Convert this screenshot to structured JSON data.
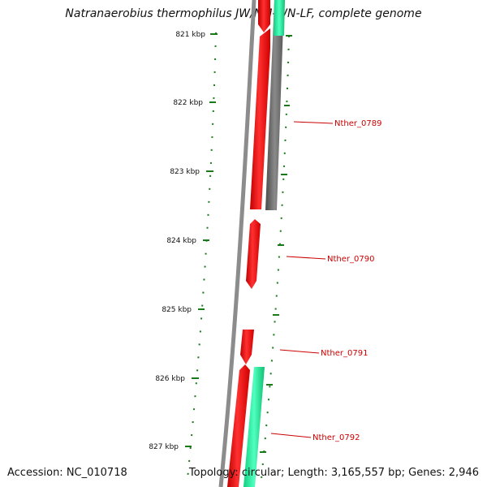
{
  "title": "Natranaerobius thermophilus JW/NM-WN-LF, complete genome",
  "footer": {
    "accession": "Accession: NC_010718",
    "summary": "Topology: circular; Length: 3,165,557 bp; Genes: 2,946"
  },
  "ticks": [
    "821 kbp",
    "822 kbp",
    "823 kbp",
    "824 kbp",
    "825 kbp",
    "826 kbp",
    "827 kbp"
  ],
  "genes": [
    {
      "name": "Nther_0789",
      "strand": "reverse",
      "color": "#ff0000"
    },
    {
      "name": "Nther_0790",
      "strand": "reverse",
      "color": "#ff0000"
    },
    {
      "name": "Nther_0791",
      "strand": "reverse",
      "color": "#ff0000"
    },
    {
      "name": "Nther_0792",
      "strand": "forward",
      "color": "#ff0000"
    }
  ],
  "colors": {
    "backbone": "#8c8c8c",
    "cds": "#ff0000",
    "gene_gray": "#6e6e6e",
    "gene_green": "#20f0a0",
    "tick": "#1a7a1a",
    "label": "#cc0000"
  }
}
